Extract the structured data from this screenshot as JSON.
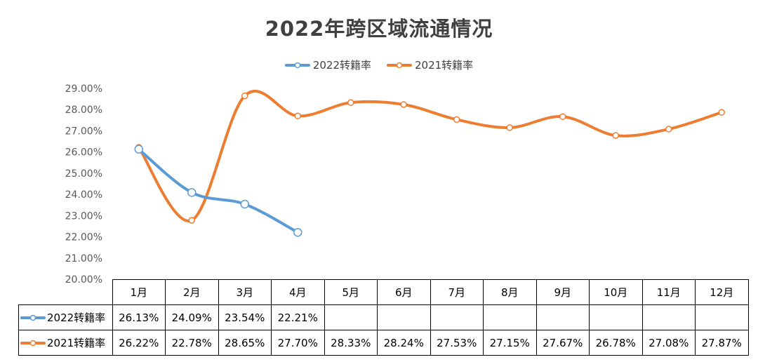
{
  "chart_data": {
    "type": "line",
    "title": "2022年跨区域流通情况",
    "categories": [
      "1月",
      "2月",
      "3月",
      "4月",
      "5月",
      "6月",
      "7月",
      "8月",
      "9月",
      "10月",
      "11月",
      "12月"
    ],
    "ylim": [
      0.2,
      0.29
    ],
    "yticks": [
      "20.00%",
      "21.00%",
      "22.00%",
      "23.00%",
      "24.00%",
      "25.00%",
      "26.00%",
      "27.00%",
      "28.00%",
      "29.00%"
    ],
    "legend_position": "top",
    "series": [
      {
        "name": "2022转籍率",
        "color": "#5b9bd5",
        "values": [
          0.2613,
          0.2409,
          0.2354,
          0.2221,
          null,
          null,
          null,
          null,
          null,
          null,
          null,
          null
        ],
        "labels": [
          "26.13%",
          "24.09%",
          "23.54%",
          "22.21%",
          "",
          "",
          "",
          "",
          "",
          "",
          "",
          ""
        ]
      },
      {
        "name": "2021转籍率",
        "color": "#ed7d31",
        "values": [
          0.2622,
          0.2278,
          0.2865,
          0.277,
          0.2833,
          0.2824,
          0.2753,
          0.2715,
          0.2767,
          0.2678,
          0.2708,
          0.2787
        ],
        "labels": [
          "26.22%",
          "22.78%",
          "28.65%",
          "27.70%",
          "28.33%",
          "28.24%",
          "27.53%",
          "27.15%",
          "27.67%",
          "26.78%",
          "27.08%",
          "27.87%"
        ]
      }
    ]
  }
}
